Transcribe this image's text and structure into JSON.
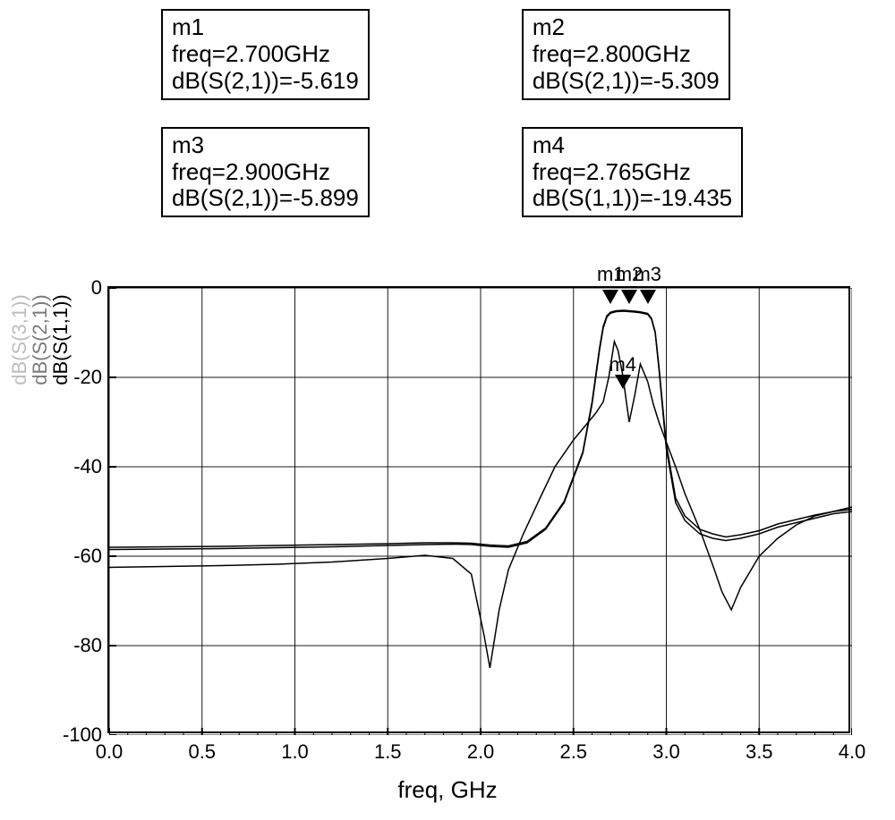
{
  "markers": {
    "m1": {
      "name": "m1",
      "freq_line": "freq=2.700GHz",
      "val_line": "dB(S(2,1))=-5.619",
      "param": "S21",
      "freq": 2.7,
      "value": -5.619
    },
    "m2": {
      "name": "m2",
      "freq_line": "freq=2.800GHz",
      "val_line": "dB(S(2,1))=-5.309",
      "param": "S21",
      "freq": 2.8,
      "value": -5.309
    },
    "m3": {
      "name": "m3",
      "freq_line": "freq=2.900GHz",
      "val_line": "dB(S(2,1))=-5.899",
      "param": "S21",
      "freq": 2.9,
      "value": -5.899
    },
    "m4": {
      "name": "m4",
      "freq_line": "freq=2.765GHz",
      "val_line": "dB(S(1,1))=-19.435",
      "param": "S11",
      "freq": 2.765,
      "value": -19.435
    }
  },
  "marker_header_labels": [
    "m1",
    "m2",
    "m3"
  ],
  "marker_header_extra": "m4",
  "chart": {
    "type": "line",
    "background_color": "#ffffff",
    "grid_color": "#000000",
    "axis_color": "#000000",
    "line_color": "#000000",
    "line_width": 1.5,
    "xlim": [
      0.0,
      4.0
    ],
    "ylim": [
      -100,
      0
    ],
    "x_major_ticks": [
      0.0,
      0.5,
      1.0,
      1.5,
      2.0,
      2.5,
      3.0,
      3.5,
      4.0
    ],
    "x_minor_div": 5,
    "y_major_ticks": [
      -100,
      -80,
      -60,
      -40,
      -20,
      0
    ],
    "y_minor_div": 0,
    "xlabel": "freq, GHz",
    "ylabels": [
      "dB(S(3,1))",
      "dB(S(2,1))",
      "dB(S(1,1))"
    ],
    "ylabel_colors": [
      "#bdbdbd",
      "#7a7a7a",
      "#000000"
    ],
    "label_fontsize": 26,
    "tick_fontsize": 22,
    "series": {
      "S11": {
        "label": "dB(S(1,1))",
        "color": "#000000",
        "x": [
          0.0,
          0.3,
          0.6,
          0.9,
          1.2,
          1.5,
          1.7,
          1.85,
          1.95,
          2.02,
          2.05,
          2.1,
          2.15,
          2.23,
          2.32,
          2.4,
          2.5,
          2.58,
          2.62,
          2.66,
          2.69,
          2.72,
          2.74,
          2.765,
          2.8,
          2.83,
          2.86,
          2.9,
          2.93,
          2.96,
          3.0,
          3.05,
          3.1,
          3.18,
          3.25,
          3.3,
          3.35,
          3.4,
          3.5,
          3.6,
          3.7,
          3.8,
          3.9,
          4.0
        ],
        "y": [
          -62.5,
          -62.3,
          -62.1,
          -61.8,
          -61.3,
          -60.5,
          -59.8,
          -60.5,
          -64.0,
          -78.0,
          -85.0,
          -72.0,
          -63.0,
          -55.0,
          -47.0,
          -40.0,
          -34.0,
          -30.0,
          -28.0,
          -25.5,
          -20.0,
          -12.0,
          -14.0,
          -19.435,
          -30.0,
          -24.0,
          -17.0,
          -21.0,
          -26.0,
          -30.0,
          -34.5,
          -40.0,
          -46.0,
          -54.0,
          -62.0,
          -68.0,
          -72.0,
          -67.0,
          -60.0,
          -56.0,
          -53.0,
          -51.0,
          -50.0,
          -49.0
        ]
      },
      "S21": {
        "label": "dB(S(2,1))",
        "color": "#000000",
        "x": [
          0.0,
          0.3,
          0.6,
          0.9,
          1.2,
          1.5,
          1.7,
          1.85,
          1.95,
          2.05,
          2.15,
          2.25,
          2.35,
          2.45,
          2.55,
          2.6,
          2.62,
          2.64,
          2.66,
          2.68,
          2.7,
          2.73,
          2.77,
          2.8,
          2.83,
          2.86,
          2.9,
          2.92,
          2.94,
          2.96,
          3.0,
          3.05,
          3.1,
          3.18,
          3.25,
          3.32,
          3.4,
          3.5,
          3.6,
          3.7,
          3.8,
          3.9,
          4.0
        ],
        "y": [
          -58.5,
          -58.4,
          -58.3,
          -58.1,
          -57.9,
          -57.6,
          -57.4,
          -57.3,
          -57.4,
          -57.8,
          -58.0,
          -57.0,
          -54.0,
          -48.0,
          -37.0,
          -26.0,
          -20.0,
          -14.0,
          -9.0,
          -6.5,
          -5.619,
          -5.3,
          -5.2,
          -5.309,
          -5.4,
          -5.55,
          -5.899,
          -7.0,
          -10.0,
          -18.0,
          -36.0,
          -48.0,
          -52.0,
          -55.0,
          -56.0,
          -56.5,
          -56.0,
          -55.0,
          -53.5,
          -52.5,
          -51.5,
          -50.5,
          -50.0
        ]
      },
      "S31": {
        "label": "dB(S(3,1))",
        "color": "#000000",
        "x": [
          0.0,
          0.3,
          0.6,
          0.9,
          1.2,
          1.5,
          1.7,
          1.85,
          1.95,
          2.05,
          2.15,
          2.25,
          2.35,
          2.45,
          2.55,
          2.6,
          2.62,
          2.64,
          2.66,
          2.68,
          2.7,
          2.73,
          2.77,
          2.8,
          2.83,
          2.86,
          2.9,
          2.92,
          2.94,
          2.96,
          3.0,
          3.05,
          3.1,
          3.18,
          3.25,
          3.32,
          3.4,
          3.5,
          3.6,
          3.7,
          3.8,
          3.9,
          4.0
        ],
        "y": [
          -58.0,
          -57.9,
          -57.8,
          -57.6,
          -57.4,
          -57.2,
          -57.0,
          -57.0,
          -57.1,
          -57.5,
          -57.7,
          -56.7,
          -53.7,
          -47.7,
          -36.7,
          -25.5,
          -19.5,
          -13.5,
          -8.6,
          -6.2,
          -5.4,
          -5.1,
          -5.0,
          -5.1,
          -5.2,
          -5.35,
          -5.7,
          -6.8,
          -9.8,
          -17.5,
          -35.0,
          -47.0,
          -51.0,
          -54.0,
          -55.0,
          -55.7,
          -55.2,
          -54.3,
          -52.8,
          -51.8,
          -50.8,
          -50.0,
          -49.5
        ]
      }
    }
  }
}
